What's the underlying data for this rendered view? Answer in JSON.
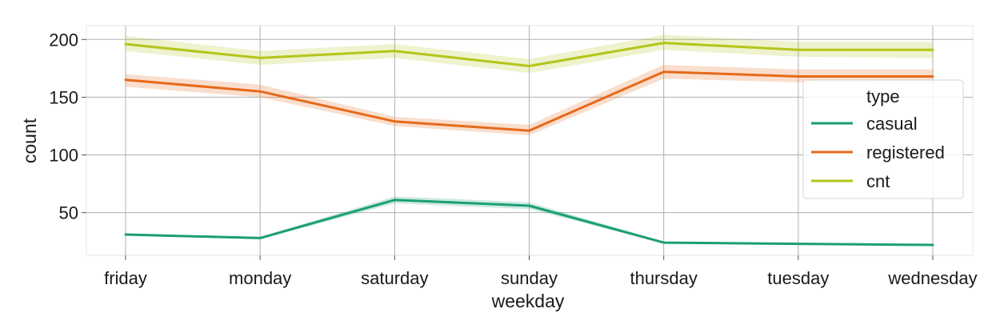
{
  "chart_data": {
    "type": "line",
    "xlabel": "weekday",
    "ylabel": "count",
    "categories": [
      "friday",
      "monday",
      "saturday",
      "sunday",
      "thursday",
      "tuesday",
      "wednesday"
    ],
    "ylim": [
      13,
      212
    ],
    "yticks": [
      50,
      100,
      150,
      200
    ],
    "grid": true,
    "legend": {
      "title": "type",
      "placement": "right"
    },
    "series": [
      {
        "name": "casual",
        "color": "#1b9e77",
        "values": [
          31,
          28,
          61,
          56,
          24,
          23,
          22
        ],
        "ci_low": [
          30,
          27,
          58,
          53,
          23.5,
          22.5,
          21.5
        ],
        "ci_high": [
          32,
          29,
          64,
          59,
          25,
          24,
          23
        ]
      },
      {
        "name": "registered",
        "color": "#e66a1a",
        "values": [
          165,
          155,
          129,
          121,
          172,
          168,
          168
        ],
        "ci_low": [
          159,
          150,
          125,
          117,
          166,
          163,
          162
        ],
        "ci_high": [
          170,
          161,
          133,
          126,
          178,
          174,
          174
        ]
      },
      {
        "name": "cnt",
        "color": "#b3c51a",
        "values": [
          196,
          184,
          190,
          177,
          197,
          191,
          191
        ],
        "ci_low": [
          190,
          178,
          184,
          171,
          191,
          185,
          184
        ],
        "ci_high": [
          203,
          190,
          196,
          183,
          204,
          198,
          198
        ]
      }
    ]
  }
}
